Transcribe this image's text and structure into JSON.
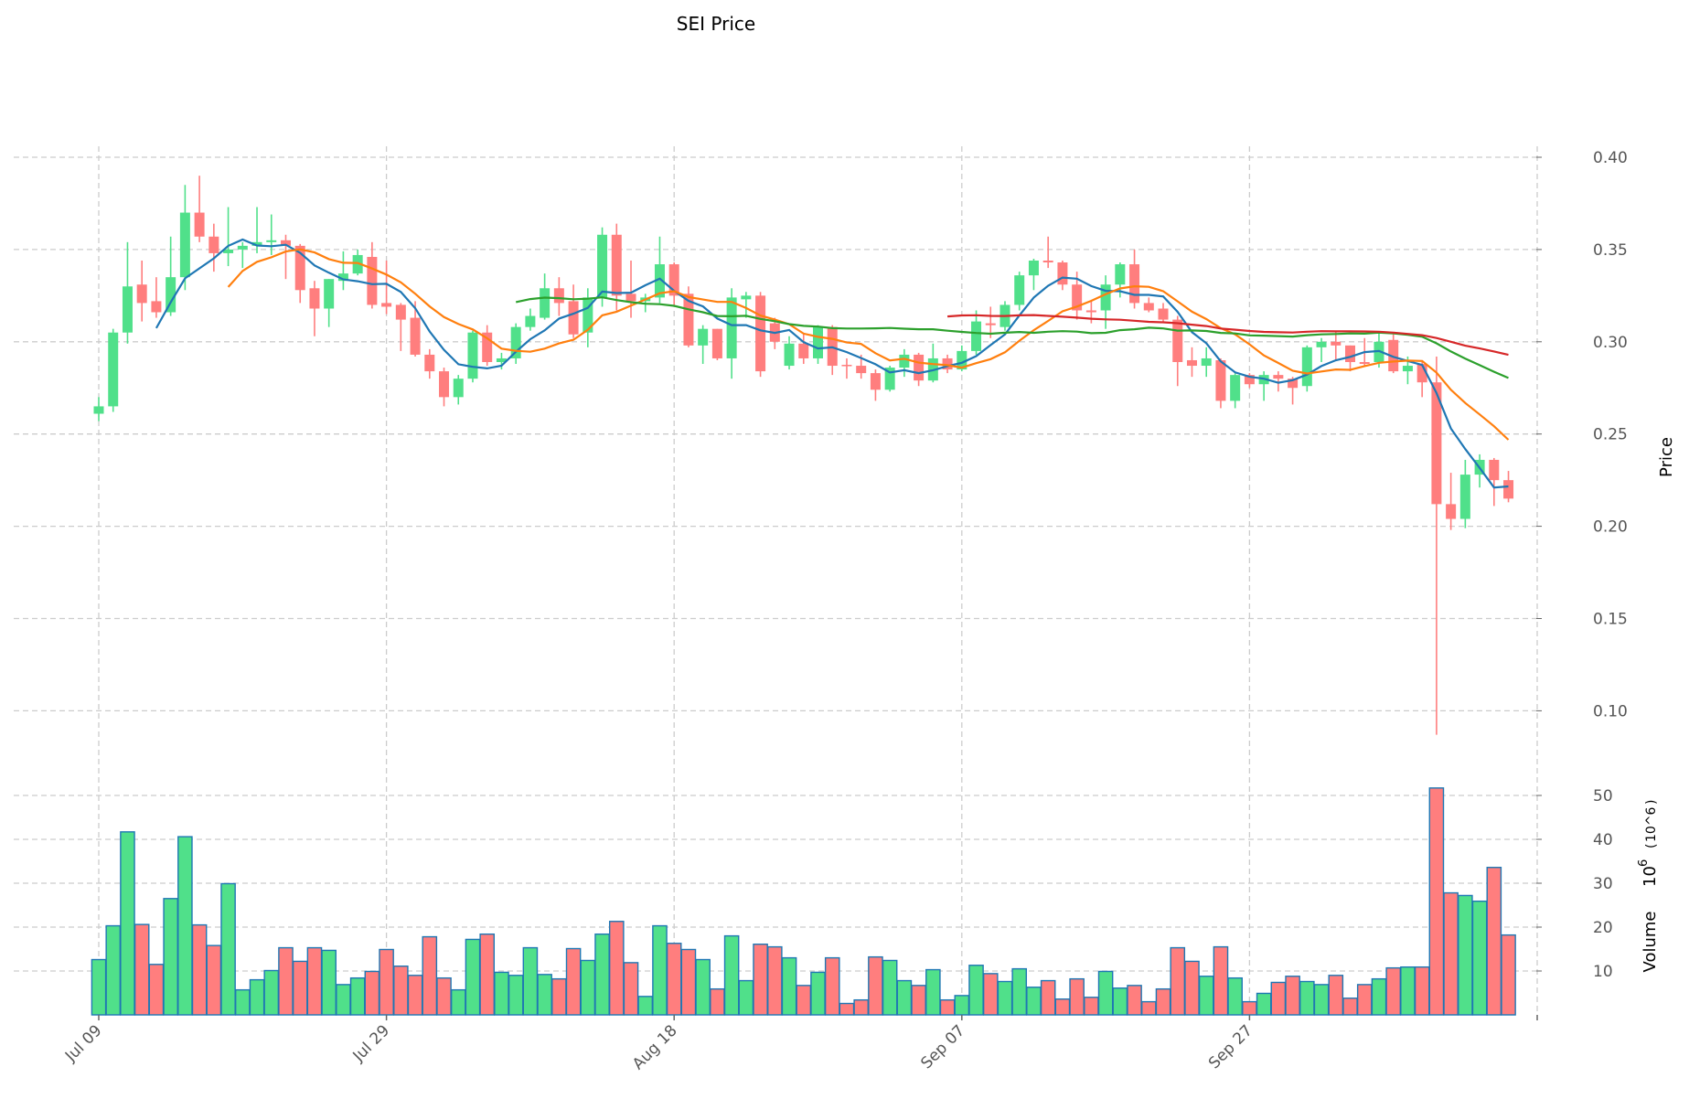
{
  "chart_data": {
    "type": "candlestick",
    "title": "SEI Price",
    "ylabel": "Price",
    "volume_label": "Volume",
    "volume_unit": "10^6",
    "volume_unit_base": "10",
    "volume_unit_exp": "6",
    "ylim": [
      0.075,
      0.41
    ],
    "volume_ylim": [
      0,
      52
    ],
    "price_ticks": [
      "0.10",
      "0.15",
      "0.20",
      "0.25",
      "0.30",
      "0.35",
      "0.40"
    ],
    "volume_ticks": [
      "10",
      "20",
      "30",
      "40",
      "50"
    ],
    "x_ticks": [
      {
        "label": "Jul 09",
        "index": 0
      },
      {
        "label": "Jul 29",
        "index": 20
      },
      {
        "label": "Aug 18",
        "index": 40
      },
      {
        "label": "Sep 07",
        "index": 60
      },
      {
        "label": "Sep 27",
        "index": 80
      },
      {
        "label": "",
        "index": 100
      }
    ],
    "colors": {
      "up": "#50e08a",
      "down": "#ff7e7e",
      "volume_edge": "#1f77b4"
    },
    "moving_averages": [
      {
        "window": 5,
        "color": "#1f77b4"
      },
      {
        "window": 10,
        "color": "#ff7f0e"
      },
      {
        "window": 30,
        "color": "#2ca02c"
      },
      {
        "window": 60,
        "color": "#d62728"
      }
    ],
    "ohlc_fields": [
      "open",
      "high",
      "low",
      "close"
    ],
    "ohlc": [
      [
        0.261,
        0.27,
        0.257,
        0.265
      ],
      [
        0.265,
        0.307,
        0.262,
        0.305
      ],
      [
        0.305,
        0.354,
        0.299,
        0.33
      ],
      [
        0.331,
        0.344,
        0.311,
        0.321
      ],
      [
        0.322,
        0.335,
        0.313,
        0.316
      ],
      [
        0.316,
        0.357,
        0.314,
        0.335
      ],
      [
        0.335,
        0.385,
        0.328,
        0.37
      ],
      [
        0.37,
        0.39,
        0.354,
        0.357
      ],
      [
        0.357,
        0.364,
        0.338,
        0.348
      ],
      [
        0.348,
        0.373,
        0.341,
        0.35
      ],
      [
        0.35,
        0.354,
        0.34,
        0.352
      ],
      [
        0.352,
        0.373,
        0.348,
        0.354
      ],
      [
        0.354,
        0.369,
        0.347,
        0.355
      ],
      [
        0.355,
        0.358,
        0.334,
        0.352
      ],
      [
        0.352,
        0.353,
        0.321,
        0.328
      ],
      [
        0.329,
        0.333,
        0.303,
        0.318
      ],
      [
        0.318,
        0.334,
        0.308,
        0.334
      ],
      [
        0.333,
        0.349,
        0.328,
        0.337
      ],
      [
        0.337,
        0.35,
        0.336,
        0.347
      ],
      [
        0.346,
        0.354,
        0.318,
        0.32
      ],
      [
        0.321,
        0.344,
        0.315,
        0.319
      ],
      [
        0.32,
        0.321,
        0.295,
        0.312
      ],
      [
        0.313,
        0.322,
        0.292,
        0.293
      ],
      [
        0.293,
        0.296,
        0.28,
        0.284
      ],
      [
        0.284,
        0.286,
        0.265,
        0.27
      ],
      [
        0.27,
        0.282,
        0.266,
        0.28
      ],
      [
        0.28,
        0.306,
        0.278,
        0.305
      ],
      [
        0.305,
        0.309,
        0.287,
        0.289
      ],
      [
        0.289,
        0.294,
        0.285,
        0.291
      ],
      [
        0.291,
        0.31,
        0.288,
        0.308
      ],
      [
        0.308,
        0.318,
        0.306,
        0.314
      ],
      [
        0.313,
        0.337,
        0.312,
        0.329
      ],
      [
        0.329,
        0.335,
        0.314,
        0.321
      ],
      [
        0.322,
        0.331,
        0.302,
        0.304
      ],
      [
        0.305,
        0.329,
        0.297,
        0.324
      ],
      [
        0.324,
        0.362,
        0.319,
        0.358
      ],
      [
        0.358,
        0.364,
        0.317,
        0.325
      ],
      [
        0.326,
        0.344,
        0.313,
        0.322
      ],
      [
        0.322,
        0.326,
        0.316,
        0.324
      ],
      [
        0.324,
        0.357,
        0.321,
        0.342
      ],
      [
        0.342,
        0.343,
        0.32,
        0.325
      ],
      [
        0.326,
        0.33,
        0.297,
        0.298
      ],
      [
        0.298,
        0.309,
        0.288,
        0.307
      ],
      [
        0.307,
        0.307,
        0.29,
        0.291
      ],
      [
        0.291,
        0.329,
        0.28,
        0.324
      ],
      [
        0.323,
        0.327,
        0.313,
        0.325
      ],
      [
        0.325,
        0.327,
        0.281,
        0.284
      ],
      [
        0.31,
        0.313,
        0.296,
        0.3
      ],
      [
        0.287,
        0.303,
        0.285,
        0.299
      ],
      [
        0.299,
        0.304,
        0.288,
        0.291
      ],
      [
        0.291,
        0.309,
        0.288,
        0.308
      ],
      [
        0.308,
        0.309,
        0.282,
        0.287
      ],
      [
        0.2875,
        0.291,
        0.28,
        0.287
      ],
      [
        0.287,
        0.293,
        0.28,
        0.283
      ],
      [
        0.283,
        0.285,
        0.268,
        0.274
      ],
      [
        0.274,
        0.287,
        0.273,
        0.286
      ],
      [
        0.286,
        0.296,
        0.281,
        0.293
      ],
      [
        0.293,
        0.294,
        0.276,
        0.279
      ],
      [
        0.279,
        0.299,
        0.278,
        0.291
      ],
      [
        0.291,
        0.293,
        0.283,
        0.285
      ],
      [
        0.285,
        0.298,
        0.284,
        0.295
      ],
      [
        0.295,
        0.317,
        0.293,
        0.311
      ],
      [
        0.31,
        0.319,
        0.302,
        0.309
      ],
      [
        0.308,
        0.322,
        0.306,
        0.32
      ],
      [
        0.32,
        0.338,
        0.317,
        0.336
      ],
      [
        0.336,
        0.345,
        0.328,
        0.344
      ],
      [
        0.344,
        0.357,
        0.34,
        0.343
      ],
      [
        0.343,
        0.344,
        0.328,
        0.331
      ],
      [
        0.331,
        0.338,
        0.312,
        0.317
      ],
      [
        0.317,
        0.322,
        0.31,
        0.316
      ],
      [
        0.317,
        0.336,
        0.307,
        0.331
      ],
      [
        0.331,
        0.343,
        0.324,
        0.342
      ],
      [
        0.342,
        0.35,
        0.318,
        0.321
      ],
      [
        0.321,
        0.324,
        0.316,
        0.317
      ],
      [
        0.318,
        0.321,
        0.311,
        0.312
      ],
      [
        0.312,
        0.314,
        0.276,
        0.289
      ],
      [
        0.29,
        0.297,
        0.281,
        0.287
      ],
      [
        0.287,
        0.297,
        0.281,
        0.291
      ],
      [
        0.29,
        0.291,
        0.264,
        0.268
      ],
      [
        0.268,
        0.283,
        0.264,
        0.282
      ],
      [
        0.282,
        0.283,
        0.275,
        0.277
      ],
      [
        0.277,
        0.284,
        0.268,
        0.282
      ],
      [
        0.282,
        0.284,
        0.273,
        0.28
      ],
      [
        0.28,
        0.281,
        0.266,
        0.275
      ],
      [
        0.276,
        0.298,
        0.273,
        0.297
      ],
      [
        0.297,
        0.302,
        0.289,
        0.3
      ],
      [
        0.3,
        0.306,
        0.29,
        0.298
      ],
      [
        0.298,
        0.298,
        0.284,
        0.289
      ],
      [
        0.289,
        0.302,
        0.287,
        0.288
      ],
      [
        0.289,
        0.305,
        0.286,
        0.3
      ],
      [
        0.301,
        0.304,
        0.283,
        0.284
      ],
      [
        0.284,
        0.292,
        0.277,
        0.287
      ],
      [
        0.288,
        0.289,
        0.27,
        0.278
      ],
      [
        0.278,
        0.292,
        0.087,
        0.212
      ],
      [
        0.212,
        0.229,
        0.198,
        0.204
      ],
      [
        0.204,
        0.236,
        0.199,
        0.228
      ],
      [
        0.228,
        0.239,
        0.221,
        0.236
      ],
      [
        0.236,
        0.237,
        0.211,
        0.225
      ],
      [
        0.225,
        0.23,
        0.213,
        0.215
      ]
    ],
    "volume": [
      12.6,
      20.3,
      41.7,
      20.6,
      11.5,
      26.5,
      40.6,
      20.5,
      15.8,
      29.9,
      5.7,
      8.0,
      10.1,
      15.3,
      12.2,
      15.3,
      14.7,
      6.9,
      8.4,
      9.9,
      14.9,
      11.1,
      9.0,
      17.8,
      8.4,
      5.7,
      17.2,
      18.4,
      9.7,
      9.0,
      15.3,
      9.2,
      8.2,
      15.1,
      12.4,
      18.4,
      21.3,
      11.9,
      4.2,
      20.3,
      16.3,
      14.9,
      12.6,
      5.9,
      18.0,
      7.8,
      16.1,
      15.5,
      13.0,
      6.7,
      9.7,
      13.0,
      2.6,
      3.4,
      13.2,
      12.4,
      7.8,
      6.7,
      10.3,
      3.4,
      4.4,
      11.3,
      9.4,
      7.6,
      10.5,
      6.3,
      7.8,
      3.6,
      8.2,
      4.0,
      9.9,
      6.1,
      6.7,
      3.0,
      5.9,
      15.3,
      12.2,
      8.8,
      15.5,
      8.4,
      3.0,
      4.9,
      7.4,
      8.8,
      7.6,
      6.9,
      9.0,
      3.8,
      6.9,
      8.2,
      10.7,
      10.9,
      10.9,
      51.7,
      27.8,
      27.2,
      25.9,
      33.6,
      18.2
    ]
  }
}
